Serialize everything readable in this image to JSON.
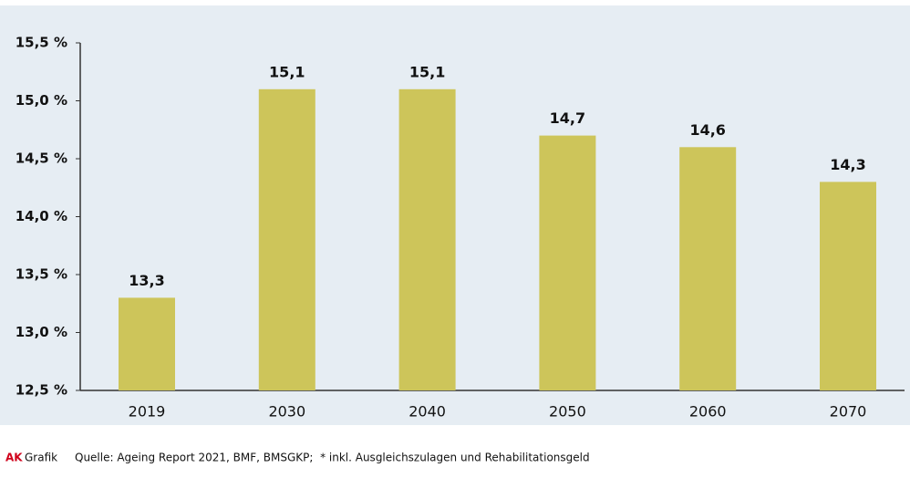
{
  "chart_data": {
    "type": "bar",
    "categories": [
      "2019",
      "2030",
      "2040",
      "2050",
      "2060",
      "2070"
    ],
    "values": [
      13.3,
      15.1,
      15.1,
      14.7,
      14.6,
      14.3
    ],
    "value_labels": [
      "13,3",
      "15,1",
      "15,1",
      "14,7",
      "14,6",
      "14,3"
    ],
    "color": "#cdc55a",
    "ylim": [
      12.5,
      15.5
    ],
    "yticks": [
      {
        "value": 12.5,
        "label": "12,5 %"
      },
      {
        "value": 13,
        "label": "13,0 %"
      },
      {
        "value": 13.5,
        "label": "13,5 %"
      },
      {
        "value": 14,
        "label": "14,0 %"
      },
      {
        "value": 14.5,
        "label": "14,5 %"
      },
      {
        "value": 15,
        "label": "15,0 %"
      },
      {
        "value": 15.5,
        "label": "15,5 %"
      }
    ],
    "grid": false,
    "footer": {
      "brand": "AK",
      "kind": "Grafik",
      "source": "Quelle: Ageing Report 2021, BMF, BMSGKP;  * inkl. Ausgleichszulagen und Rehabilitationsgeld"
    }
  }
}
